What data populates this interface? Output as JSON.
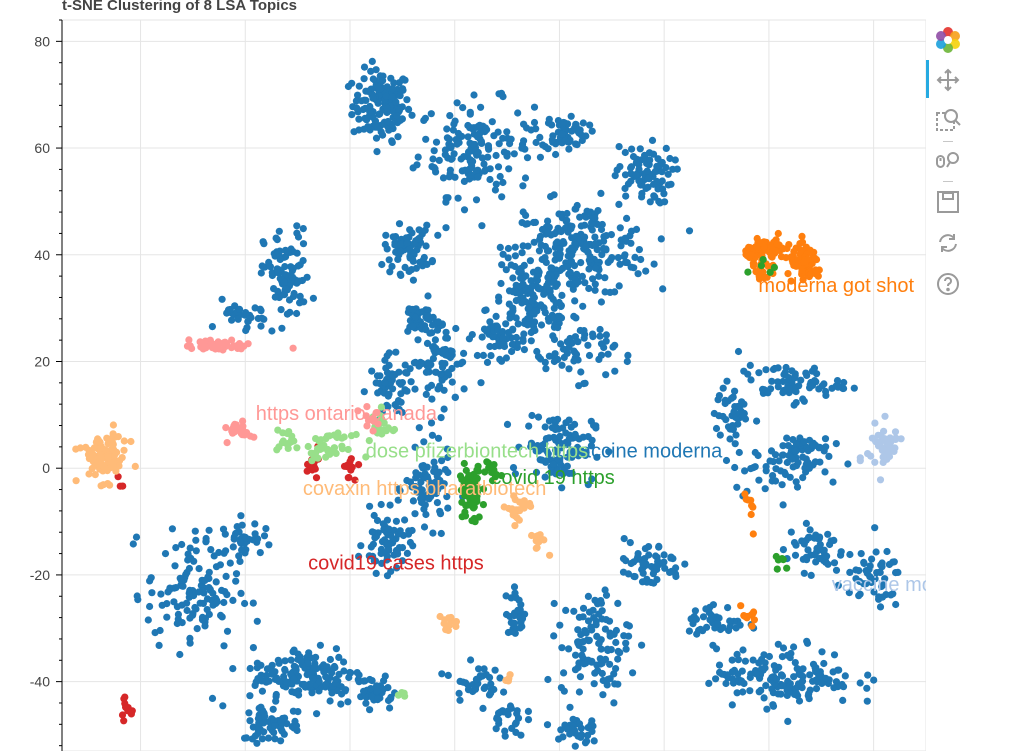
{
  "title": "t-SNE Clustering of 8 LSA Topics",
  "toolbar": {
    "tools": [
      {
        "name": "bokeh-logo-icon",
        "active": false
      },
      {
        "name": "pan-tool-icon",
        "active": true
      },
      {
        "name": "box-zoom-tool-icon",
        "active": false
      },
      {
        "name": "wheel-zoom-tool-icon",
        "active": false
      },
      {
        "name": "save-tool-icon",
        "active": false
      },
      {
        "name": "reset-tool-icon",
        "active": false
      },
      {
        "name": "help-tool-icon",
        "active": false
      }
    ],
    "accent_color": "#26aae1"
  },
  "chart_data": {
    "type": "scatter",
    "title": "t-SNE Clustering of 8 LSA Topics",
    "xlabel": "",
    "ylabel": "",
    "xlim": [
      -75,
      90
    ],
    "ylim": [
      -53,
      84
    ],
    "yticks": [
      80,
      60,
      40,
      20,
      0,
      -20,
      -40
    ],
    "grid": true,
    "series": [
      {
        "color": "#1f77b4",
        "label": "vaccine moderna",
        "label_x": 22,
        "label_y": 2,
        "clusters": [
          [
            -14,
            68,
            5,
            6,
            140
          ],
          [
            4,
            60,
            10,
            8,
            160
          ],
          [
            15,
            30,
            8,
            10,
            160
          ],
          [
            24,
            41,
            12,
            8,
            220
          ],
          [
            21,
            63,
            4,
            3,
            60
          ],
          [
            36,
            55,
            5,
            5,
            80
          ],
          [
            -32,
            36,
            4,
            8,
            90
          ],
          [
            -9,
            41,
            4,
            4,
            70
          ],
          [
            -3,
            20,
            5,
            8,
            80
          ],
          [
            9,
            24,
            3,
            3,
            40
          ],
          [
            -12,
            15,
            4,
            5,
            60
          ],
          [
            24,
            22,
            6,
            5,
            50
          ],
          [
            -7,
            28,
            3,
            3,
            35
          ],
          [
            -5,
            -4,
            4,
            6,
            80
          ],
          [
            -13,
            -14,
            4,
            5,
            70
          ],
          [
            20,
            4,
            6,
            6,
            110
          ],
          [
            -50,
            -23,
            8,
            10,
            130
          ],
          [
            -28,
            -39,
            10,
            5,
            160
          ],
          [
            -35,
            -48,
            5,
            3,
            60
          ],
          [
            -40,
            -13,
            3,
            3,
            35
          ],
          [
            37,
            -18,
            6,
            4,
            55
          ],
          [
            27,
            -33,
            6,
            9,
            110
          ],
          [
            64,
            16,
            9,
            3,
            70
          ],
          [
            53,
            10,
            3,
            5,
            40
          ],
          [
            66,
            3,
            5,
            4,
            50
          ],
          [
            69,
            -15,
            5,
            4,
            50
          ],
          [
            79,
            -21,
            6,
            5,
            50
          ],
          [
            63,
            -39,
            12,
            5,
            160
          ],
          [
            12,
            -27,
            2,
            4,
            30
          ],
          [
            -15,
            -42,
            3,
            3,
            35
          ],
          [
            4,
            -40,
            4,
            3,
            35
          ],
          [
            10,
            -47,
            3,
            3,
            25
          ],
          [
            23,
            -49,
            4,
            3,
            30
          ],
          [
            50,
            -29,
            5,
            3,
            40
          ],
          [
            60,
            0,
            8,
            4,
            40
          ],
          [
            -40,
            28,
            4,
            3,
            30
          ]
        ]
      },
      {
        "color": "#ff7f0e",
        "label": "moderna got shot",
        "label_x": 58,
        "label_y": 33,
        "clusters": [
          [
            60,
            41,
            4,
            2,
            70
          ],
          [
            67,
            38,
            3,
            3,
            60
          ],
          [
            59,
            37,
            2,
            2,
            15
          ],
          [
            56,
            -8,
            2,
            4,
            8
          ],
          [
            56,
            -28,
            2,
            2,
            10
          ]
        ]
      },
      {
        "color": "#2ca02c",
        "label": "covid 19 https",
        "label_x": 7,
        "label_y": -3,
        "clusters": [
          [
            3,
            -5,
            2,
            5,
            70
          ],
          [
            7,
            0,
            2,
            2,
            12
          ],
          [
            59,
            38,
            2,
            2,
            5
          ],
          [
            62,
            -17,
            3,
            2,
            6
          ]
        ]
      },
      {
        "color": "#d62728",
        "label": "covid19 cases https",
        "label_x": -28,
        "label_y": -19,
        "clusters": [
          [
            -27,
            2,
            1.5,
            3,
            18
          ],
          [
            -20,
            0,
            1,
            2,
            15
          ],
          [
            -64,
            -3,
            1,
            1,
            3
          ],
          [
            -63,
            -45,
            1,
            2,
            12
          ]
        ]
      },
      {
        "color": "#98df8a",
        "label": "dose pfizerbiontech https",
        "label_x": -17,
        "label_y": 2,
        "clusters": [
          [
            -24,
            4,
            4,
            2,
            40
          ],
          [
            -14,
            8,
            2,
            3,
            18
          ],
          [
            -32,
            5,
            2,
            2,
            15
          ],
          [
            -10,
            -42,
            1,
            1,
            4
          ]
        ]
      },
      {
        "color": "#ffbb78",
        "label": "covaxin https bharatbiotech",
        "label_x": -29,
        "label_y": -5,
        "clusters": [
          [
            -67,
            2,
            4,
            4,
            90
          ],
          [
            12,
            -8,
            2,
            3,
            25
          ],
          [
            16,
            -13,
            1.5,
            2,
            12
          ],
          [
            -1,
            -29,
            2,
            1.5,
            12
          ],
          [
            10,
            -40,
            1,
            1,
            4
          ]
        ]
      },
      {
        "color": "#ff9896",
        "label": "https ontario canada",
        "label_x": -38,
        "label_y": 9,
        "clusters": [
          [
            -45,
            23,
            6,
            1,
            40
          ],
          [
            -41,
            7,
            2,
            1.5,
            25
          ],
          [
            -16,
            9,
            2,
            2,
            10
          ]
        ]
      },
      {
        "color": "#aec7e8",
        "label": "vaccine moderna",
        "label_x": 72,
        "label_y": -23,
        "clusters": [
          [
            82,
            4,
            3,
            4,
            50
          ]
        ]
      }
    ]
  }
}
